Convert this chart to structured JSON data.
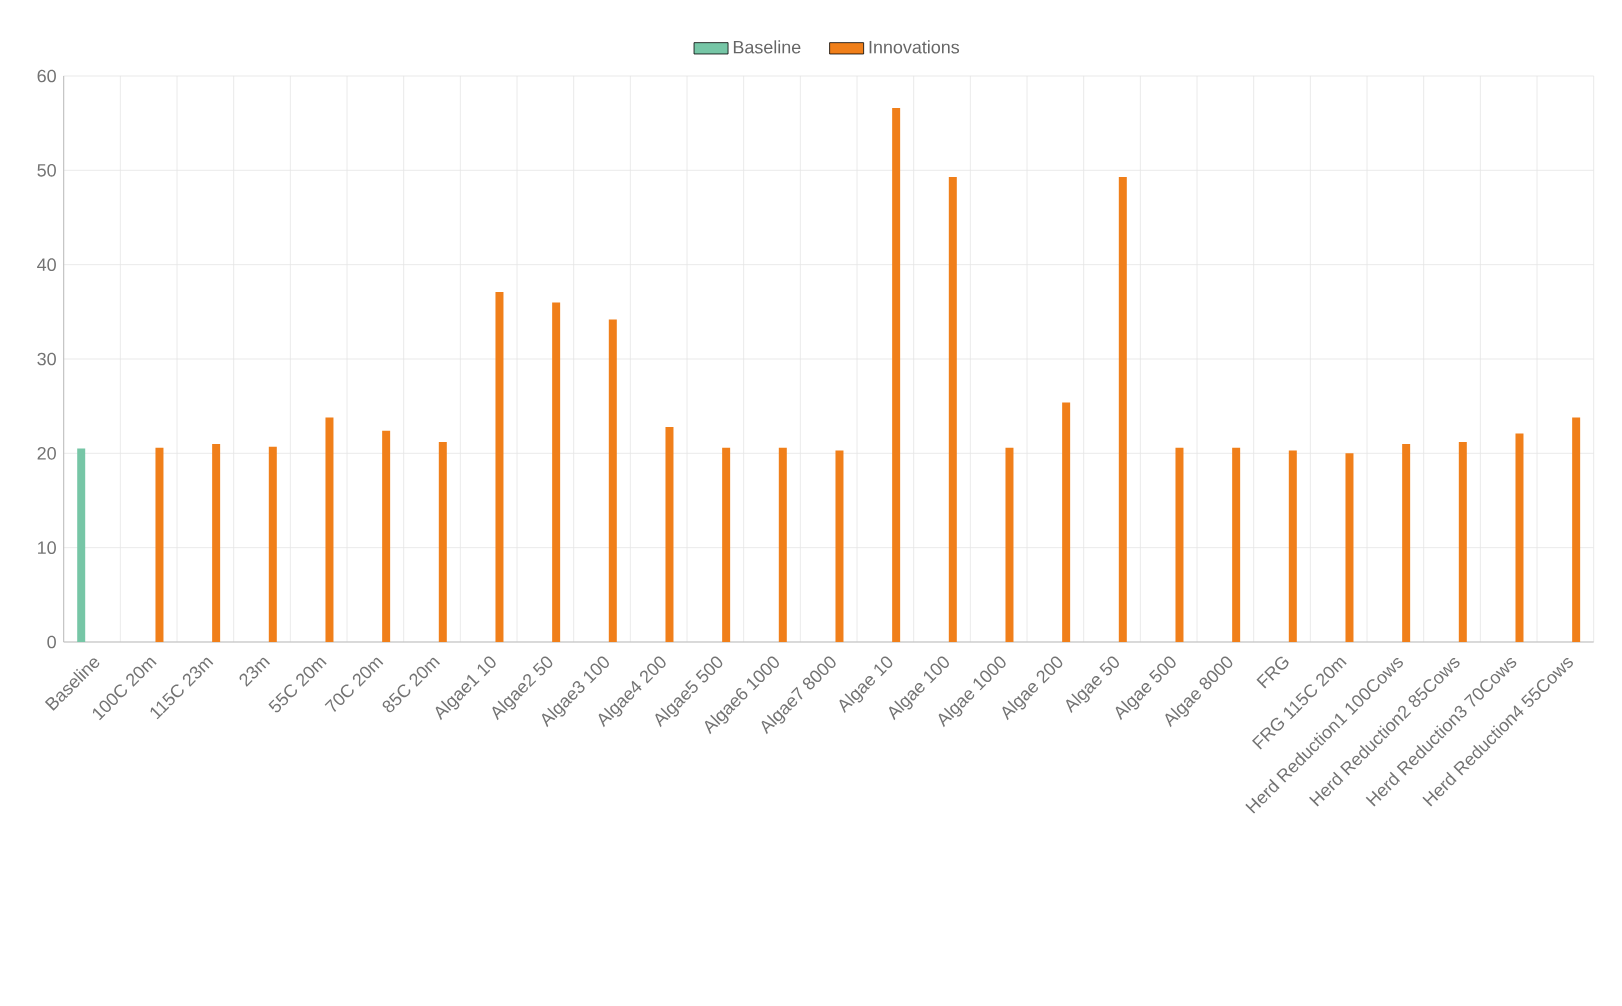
{
  "chart_data": {
    "type": "bar",
    "categories": [
      "Baseline",
      "100C 20m",
      "115C 23m",
      "23m",
      "55C 20m",
      "70C 20m",
      "85C 20m",
      "Algae1 10",
      "Algae2 50",
      "Algae3 100",
      "Algae4 200",
      "Algae5 500",
      "Algae6 1000",
      "Algae7 8000",
      "Algae 10",
      "Algae 100",
      "Algae 1000",
      "Algae 200",
      "Algae 50",
      "Algae 500",
      "Algae 8000",
      "FRG",
      "FRG 115C 20m",
      "Herd Reduction1 100Cows",
      "Herd Reduction2 85Cows",
      "Herd Reduction3 70Cows",
      "Herd Reduction4 55Cows"
    ],
    "series": [
      {
        "name": "Baseline",
        "color": "#76c6a6",
        "values": [
          20.5,
          null,
          null,
          null,
          null,
          null,
          null,
          null,
          null,
          null,
          null,
          null,
          null,
          null,
          null,
          null,
          null,
          null,
          null,
          null,
          null,
          null,
          null,
          null,
          null,
          null,
          null
        ]
      },
      {
        "name": "Innovations",
        "color": "#f07f1a",
        "values": [
          null,
          20.6,
          21.0,
          20.7,
          23.8,
          22.4,
          21.2,
          37.1,
          36.0,
          34.2,
          22.8,
          20.6,
          20.6,
          20.3,
          56.6,
          49.3,
          20.6,
          25.4,
          49.3,
          20.6,
          20.6,
          20.3,
          20.0,
          21.0,
          21.2,
          22.1,
          23.8
        ]
      }
    ],
    "ylim": [
      0,
      60
    ],
    "yticks": [
      0,
      10,
      20,
      30,
      40,
      50,
      60
    ],
    "grid": true,
    "legend": "top"
  }
}
